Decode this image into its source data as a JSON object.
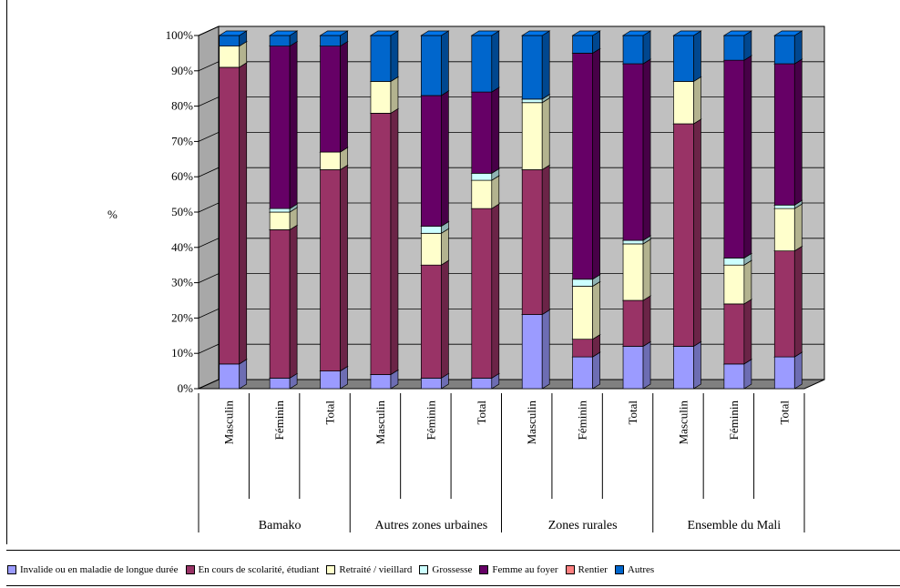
{
  "chart_data": {
    "type": "bar",
    "stacked": true,
    "percent": true,
    "ylabel": "%",
    "y_ticks": [
      "0%",
      "10%",
      "20%",
      "30%",
      "40%",
      "50%",
      "60%",
      "70%",
      "80%",
      "90%",
      "100%"
    ],
    "ylim": [
      0,
      100
    ],
    "grid": true,
    "legend_position": "bottom",
    "groups": [
      {
        "label": "Bamako",
        "categories": [
          "Masculin",
          "Féminin",
          "Total"
        ]
      },
      {
        "label": "Autres zones urbaines",
        "categories": [
          "Masculin",
          "Féminin",
          "Total"
        ]
      },
      {
        "label": "Zones rurales",
        "categories": [
          "Masculin",
          "Féminin",
          "Total"
        ]
      },
      {
        "label": "Ensemble du Mali",
        "categories": [
          "Masculin",
          "Féminin",
          "Total"
        ]
      }
    ],
    "series": [
      {
        "name": "Invalide ou en maladie de longue durée",
        "color": "#9b9bff",
        "values": [
          7,
          3,
          5,
          4,
          3,
          3,
          21,
          9,
          12,
          12,
          7,
          9
        ]
      },
      {
        "name": "En cours de scolarité, étudiant",
        "color": "#993366",
        "values": [
          84,
          42,
          57,
          74,
          32,
          48,
          41,
          5,
          13,
          63,
          17,
          30
        ]
      },
      {
        "name": "Retraité / vieillard",
        "color": "#ffffcc",
        "values": [
          6,
          5,
          5,
          9,
          9,
          8,
          19,
          15,
          16,
          12,
          11,
          12
        ]
      },
      {
        "name": "Grossesse",
        "color": "#ccffff",
        "values": [
          0,
          1,
          0,
          0,
          2,
          2,
          1,
          2,
          1,
          0,
          2,
          1
        ]
      },
      {
        "name": "Femme au foyer",
        "color": "#660066",
        "values": [
          0,
          46,
          30,
          0,
          37,
          23,
          0,
          64,
          50,
          0,
          56,
          40
        ]
      },
      {
        "name": "Rentier",
        "color": "#ff8080",
        "values": [
          0,
          0,
          0,
          0,
          0,
          0,
          0,
          0,
          0,
          0,
          0,
          0
        ]
      },
      {
        "name": "Autres",
        "color": "#0066cc",
        "values": [
          3,
          3,
          3,
          13,
          17,
          16,
          18,
          5,
          8,
          13,
          7,
          8
        ]
      }
    ]
  }
}
